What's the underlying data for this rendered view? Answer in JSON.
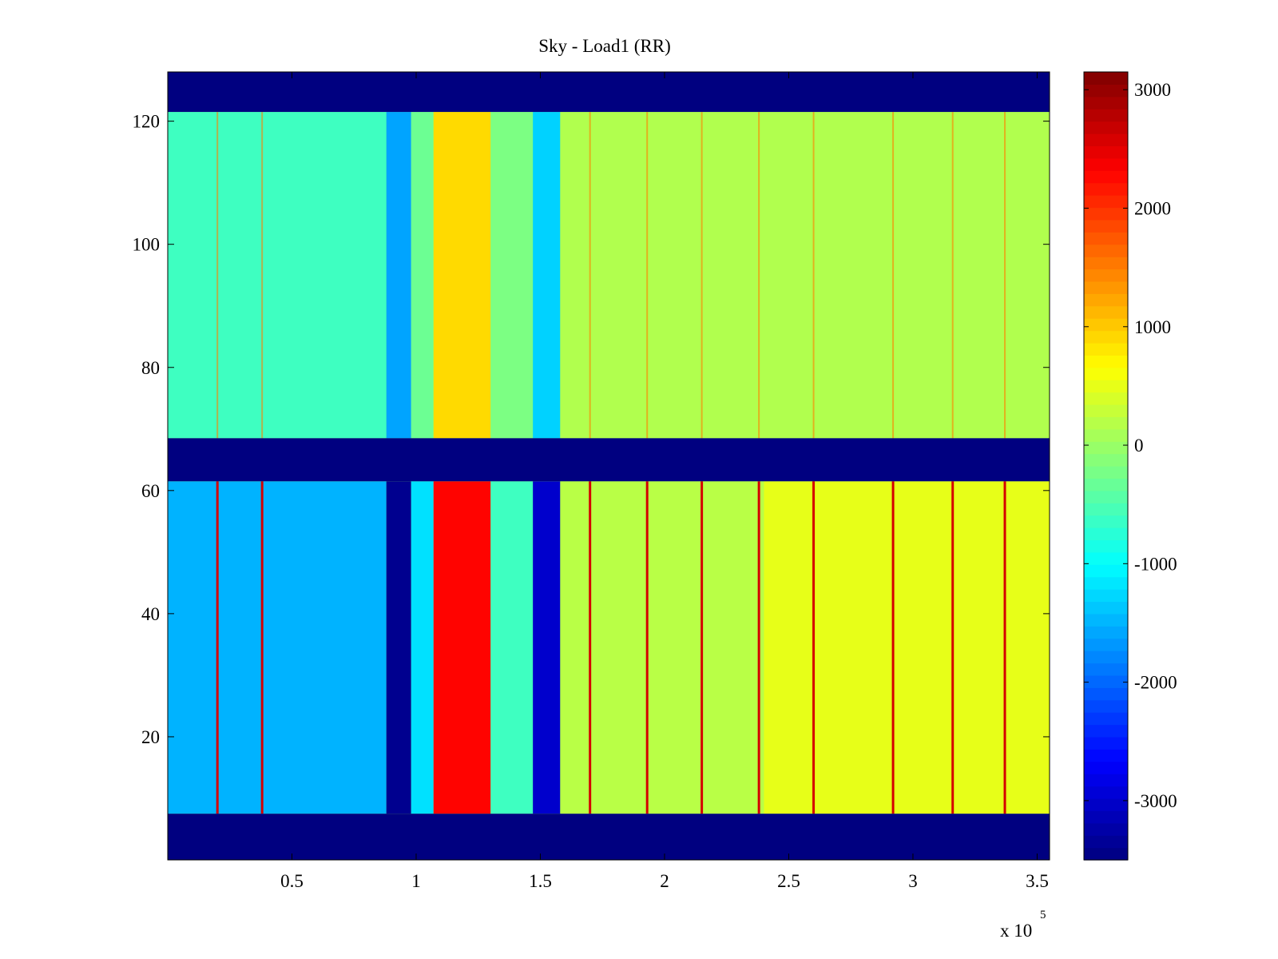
{
  "chart_data": {
    "type": "heatmap",
    "title": "Sky - Load1 (RR)",
    "xlabel": "",
    "ylabel": "",
    "x_multiplier_label": "x 10",
    "x_multiplier_exponent": "5",
    "xlim": [
      0,
      3.55
    ],
    "ylim": [
      0,
      128
    ],
    "x_ticks": [
      0.5,
      1,
      1.5,
      2,
      2.5,
      3,
      3.5
    ],
    "x_tick_labels": [
      "0.5",
      "1",
      "1.5",
      "2",
      "2.5",
      "3",
      "3.5"
    ],
    "y_ticks": [
      20,
      40,
      60,
      80,
      100,
      120
    ],
    "y_tick_labels": [
      "20",
      "40",
      "60",
      "80",
      "100",
      "120"
    ],
    "colorbar": {
      "colormap": "jet",
      "clim": [
        -3500,
        3150
      ],
      "ticks": [
        3000,
        2000,
        1000,
        0,
        -1000,
        -2000,
        -3000
      ],
      "tick_labels": [
        "3000",
        "2000",
        "1000",
        "0",
        "-1000",
        "-2000",
        "-3000"
      ]
    },
    "masked_row_bands": [
      {
        "y_from": 0,
        "y_to": 7.5,
        "value": -3500
      },
      {
        "y_from": 61.5,
        "y_to": 68.5,
        "value": -3500
      },
      {
        "y_from": 121.5,
        "y_to": 128,
        "value": -3500
      }
    ],
    "upper_block": {
      "y_range": [
        68.5,
        121.5
      ],
      "baseline_value": 0,
      "column_regions": [
        {
          "x_from": 0.0,
          "x_to": 0.88,
          "value": -600
        },
        {
          "x_from": 0.88,
          "x_to": 0.98,
          "value": -1600
        },
        {
          "x_from": 0.98,
          "x_to": 1.07,
          "value": -300
        },
        {
          "x_from": 1.07,
          "x_to": 1.3,
          "value": 900
        },
        {
          "x_from": 1.3,
          "x_to": 1.47,
          "value": -200
        },
        {
          "x_from": 1.47,
          "x_to": 1.58,
          "value": -1300
        },
        {
          "x_from": 1.58,
          "x_to": 3.55,
          "value": 150
        }
      ]
    },
    "lower_block": {
      "y_range": [
        7.5,
        61.5
      ],
      "column_regions": [
        {
          "x_from": 0.0,
          "x_to": 0.88,
          "value": -1500
        },
        {
          "x_from": 0.88,
          "x_to": 0.98,
          "value": -3400
        },
        {
          "x_from": 0.98,
          "x_to": 1.07,
          "value": -1200
        },
        {
          "x_from": 1.07,
          "x_to": 1.3,
          "value": 2300
        },
        {
          "x_from": 1.3,
          "x_to": 1.47,
          "value": -600
        },
        {
          "x_from": 1.47,
          "x_to": 1.58,
          "value": -3000
        },
        {
          "x_from": 1.58,
          "x_to": 2.4,
          "value": 200
        },
        {
          "x_from": 2.4,
          "x_to": 3.55,
          "value": 500
        }
      ]
    },
    "hot_column_lines_x": [
      0.2,
      0.38,
      1.7,
      1.93,
      2.15,
      2.38,
      2.6,
      2.92,
      3.16,
      3.37
    ]
  }
}
